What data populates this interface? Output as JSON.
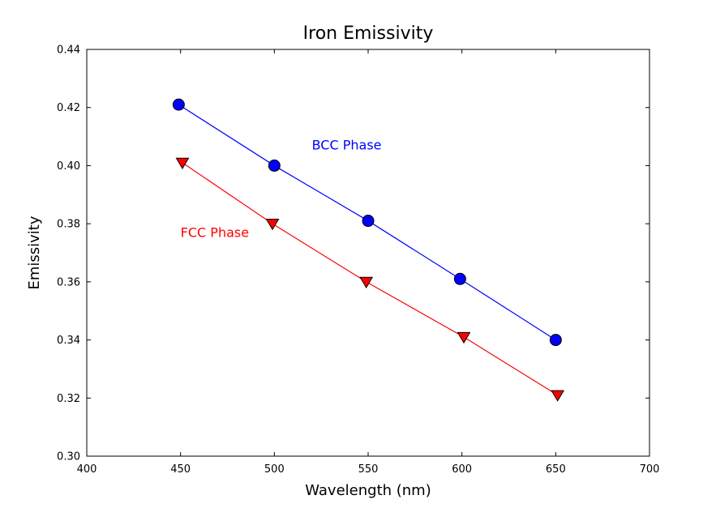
{
  "chart_data": {
    "type": "line",
    "title": "Iron Emissivity",
    "xlabel": "Wavelength (nm)",
    "ylabel": "Emissivity",
    "xlim": [
      400,
      700
    ],
    "ylim": [
      0.3,
      0.44
    ],
    "xticks": [
      400,
      450,
      500,
      550,
      600,
      650,
      700
    ],
    "xtick_labels": [
      "400",
      "450",
      "500",
      "550",
      "600",
      "650",
      "700"
    ],
    "yticks": [
      0.3,
      0.32,
      0.34,
      0.36,
      0.38,
      0.4,
      0.42,
      0.44
    ],
    "ytick_labels": [
      "0.30",
      "0.32",
      "0.34",
      "0.36",
      "0.38",
      "0.40",
      "0.42",
      "0.44"
    ],
    "grid": false,
    "series": [
      {
        "color": "#0000ff",
        "marker": "circle",
        "x": [
          449,
          500,
          550,
          599,
          650
        ],
        "y": [
          0.421,
          0.4,
          0.381,
          0.361,
          0.34
        ]
      },
      {
        "color": "#ff0000",
        "marker": "triangle-down",
        "x": [
          451,
          499,
          549,
          601,
          651
        ],
        "y": [
          0.401,
          0.38,
          0.36,
          0.341,
          0.321
        ]
      }
    ],
    "annotations": [
      {
        "text": "BCC Phase",
        "x": 520,
        "y": 0.4055,
        "color": "#0000ff"
      },
      {
        "text": "FCC Phase",
        "x": 450,
        "y": 0.3755,
        "color": "#ff0000"
      }
    ]
  }
}
